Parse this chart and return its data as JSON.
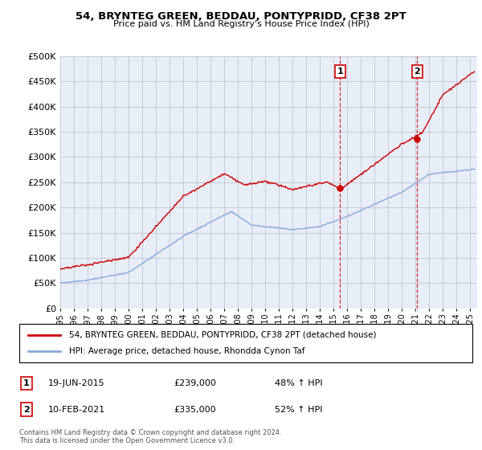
{
  "title": "54, BRYNTEG GREEN, BEDDAU, PONTYPRIDD, CF38 2PT",
  "subtitle": "Price paid vs. HM Land Registry's House Price Index (HPI)",
  "ytick_vals": [
    0,
    50000,
    100000,
    150000,
    200000,
    250000,
    300000,
    350000,
    400000,
    450000,
    500000
  ],
  "ylim": [
    0,
    500000
  ],
  "xlim_start": 1995.0,
  "xlim_end": 2025.5,
  "hpi_color": "#88AADD",
  "price_color": "#CC0000",
  "marker1_date": 2015.47,
  "marker1_price": 239000,
  "marker1_label": "19-JUN-2015",
  "marker1_text": "£239,000",
  "marker1_pct": "48% ↑ HPI",
  "marker2_date": 2021.12,
  "marker2_price": 335000,
  "marker2_label": "10-FEB-2021",
  "marker2_text": "£335,000",
  "marker2_pct": "52% ↑ HPI",
  "legend_line1": "54, BRYNTEG GREEN, BEDDAU, PONTYPRIDD, CF38 2PT (detached house)",
  "legend_line2": "HPI: Average price, detached house, Rhondda Cynon Taf",
  "footer": "Contains HM Land Registry data © Crown copyright and database right 2024.\nThis data is licensed under the Open Government Licence v3.0.",
  "background_color": "#e8eef8",
  "grid_color": "#bbbbcc",
  "xtick_years": [
    1995,
    1996,
    1997,
    1998,
    1999,
    2000,
    2001,
    2002,
    2003,
    2004,
    2005,
    2006,
    2007,
    2008,
    2009,
    2010,
    2011,
    2012,
    2013,
    2014,
    2015,
    2016,
    2017,
    2018,
    2019,
    2020,
    2021,
    2022,
    2023,
    2024,
    2025
  ]
}
